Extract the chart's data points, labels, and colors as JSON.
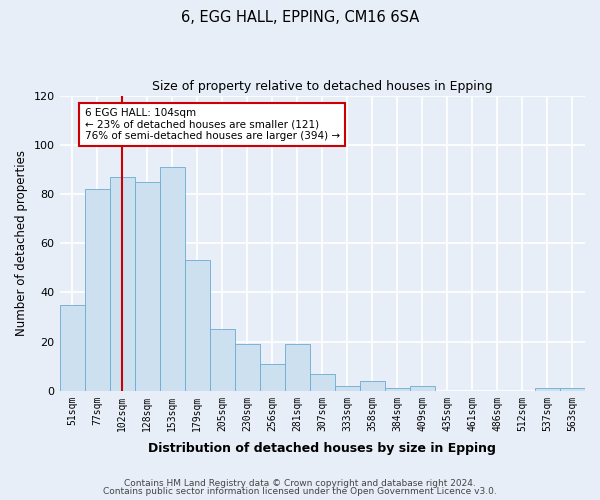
{
  "title1": "6, EGG HALL, EPPING, CM16 6SA",
  "title2": "Size of property relative to detached houses in Epping",
  "xlabel": "Distribution of detached houses by size in Epping",
  "ylabel": "Number of detached properties",
  "bar_labels": [
    "51sqm",
    "77sqm",
    "102sqm",
    "128sqm",
    "153sqm",
    "179sqm",
    "205sqm",
    "230sqm",
    "256sqm",
    "281sqm",
    "307sqm",
    "333sqm",
    "358sqm",
    "384sqm",
    "409sqm",
    "435sqm",
    "461sqm",
    "486sqm",
    "512sqm",
    "537sqm",
    "563sqm"
  ],
  "bar_values": [
    35,
    82,
    87,
    85,
    91,
    53,
    25,
    19,
    11,
    19,
    7,
    2,
    4,
    1,
    2,
    0,
    0,
    0,
    0,
    1,
    1
  ],
  "bar_color": "#cde0f0",
  "bar_edge_color": "#6aabd2",
  "vline_color": "#cc0000",
  "vline_index": 2,
  "annotation_text": "6 EGG HALL: 104sqm\n← 23% of detached houses are smaller (121)\n76% of semi-detached houses are larger (394) →",
  "annotation_box_facecolor": "#ffffff",
  "annotation_box_edgecolor": "#cc0000",
  "ylim": [
    0,
    120
  ],
  "yticks": [
    0,
    20,
    40,
    60,
    80,
    100,
    120
  ],
  "background_color": "#e8eef8",
  "plot_bg_color": "#e8eef8",
  "grid_color": "#ffffff",
  "footer1": "Contains HM Land Registry data © Crown copyright and database right 2024.",
  "footer2": "Contains public sector information licensed under the Open Government Licence v3.0."
}
